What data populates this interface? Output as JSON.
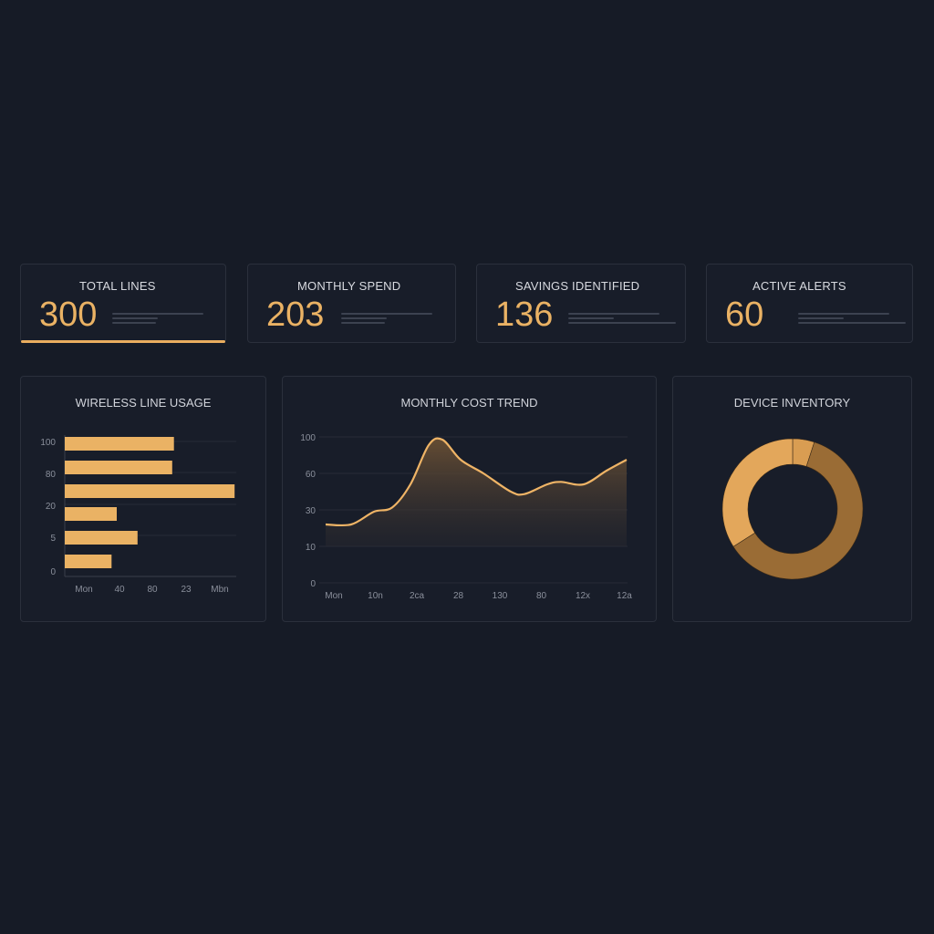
{
  "kpis": [
    {
      "title": "TOTAL LINES",
      "value": "300",
      "active": true
    },
    {
      "title": "MONTHLY SPEND",
      "value": "203",
      "active": false
    },
    {
      "title": "SAVINGS IDENTIFIED",
      "value": "136",
      "active": false
    },
    {
      "title": "ACTIVE ALERTS",
      "value": "60",
      "active": false
    }
  ],
  "colors": {
    "background": "#161b26",
    "accent": "#eab264",
    "accent_dark": "#8a6030"
  },
  "chart_data": [
    {
      "type": "bar",
      "orientation": "horizontal",
      "title": "WIRELESS LINE USAGE",
      "y_tick_labels": [
        "100",
        "80",
        "20",
        "5",
        "0"
      ],
      "x_tick_labels": [
        "Mon",
        "40",
        "80",
        "23",
        "Mbn"
      ],
      "values_percent_of_axis": [
        63,
        62,
        98,
        30,
        42,
        27
      ],
      "grid": true
    },
    {
      "type": "area",
      "title": "MONTHLY COST TREND",
      "y_tick_labels": [
        "100",
        "60",
        "30",
        "10",
        "0"
      ],
      "x_tick_labels": [
        "Mon",
        "10n",
        "2ca",
        "28",
        "130",
        "80",
        "12x",
        "12a"
      ],
      "values": [
        22,
        22,
        29,
        32,
        51,
        91,
        97,
        75,
        60,
        45,
        43,
        51,
        53,
        51,
        63,
        75
      ],
      "grid": true
    },
    {
      "type": "pie",
      "donut": true,
      "title": "DEVICE INVENTORY",
      "values_percent": [
        5,
        61,
        34
      ],
      "colors": [
        "#d99d52",
        "#9a6c35",
        "#e3a75b"
      ]
    }
  ]
}
